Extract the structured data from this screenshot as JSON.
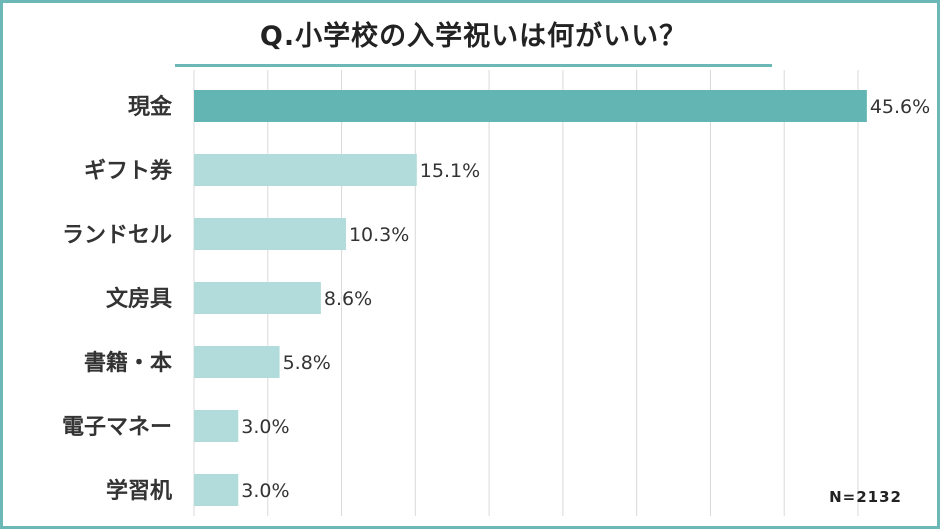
{
  "title": "Q.小学校の入学祝いは何がいい？",
  "n_label": "N=2132",
  "colors": {
    "highlight": "#63b5b4",
    "bar": "#b2dcdb",
    "grid": "#d9d9d9",
    "border": "#6bb8b6"
  },
  "chart_data": {
    "type": "bar",
    "orientation": "horizontal",
    "categories": [
      "現金",
      "ギフト券",
      "ランドセル",
      "文房具",
      "書籍・本",
      "電子マネー",
      "学習机"
    ],
    "values": [
      45.6,
      15.1,
      10.3,
      8.6,
      5.8,
      3.0,
      3.0
    ],
    "value_labels": [
      "45.6%",
      "15.1%",
      "10.3%",
      "8.6%",
      "5.8%",
      "3.0%",
      "3.0%"
    ],
    "unit": "%",
    "xlim": [
      0,
      45
    ],
    "grid": true,
    "highlight_index": 0
  }
}
